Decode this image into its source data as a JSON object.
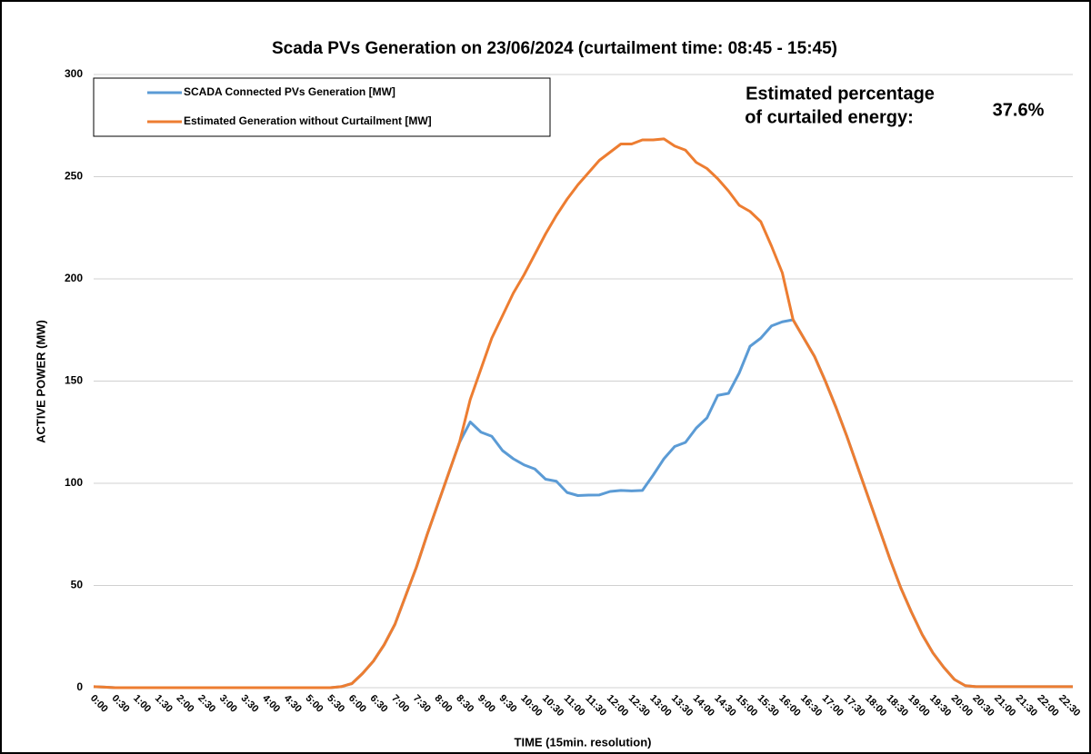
{
  "chart_data": {
    "type": "line",
    "title": "Scada PVs Generation on 23/06/2024 (curtailment time: 08:45 - 15:45)",
    "x_label": "TIME (15min. resolution)",
    "y_label": "ACTIVE POWER (MW)",
    "annotation_label": [
      "Estimated percentage",
      "of curtailed energy:"
    ],
    "annotation_value": "37.6%",
    "categories": [
      "0:00",
      null,
      "0:30",
      null,
      "1:00",
      null,
      "1:30",
      null,
      "2:00",
      null,
      "2:30",
      null,
      "3:00",
      null,
      "3:30",
      null,
      "4:00",
      null,
      "4:30",
      null,
      "5:00",
      null,
      "5:30",
      null,
      "6:00",
      null,
      "6:30",
      null,
      "7:00",
      null,
      "7:30",
      null,
      "8:00",
      null,
      "8:30",
      null,
      "9:00",
      null,
      "9:30",
      null,
      "10:00",
      null,
      "10:30",
      null,
      "11:00",
      null,
      "11:30",
      null,
      "12:00",
      null,
      "12:30",
      null,
      "13:00",
      null,
      "13:30",
      null,
      "14:00",
      null,
      "14:30",
      null,
      "15:00",
      null,
      "15:30",
      null,
      "16:00",
      null,
      "16:30",
      null,
      "17:00",
      null,
      "17:30",
      null,
      "18:00",
      null,
      "18:30",
      null,
      "19:00",
      null,
      "19:30",
      null,
      "20:00",
      null,
      "20:30",
      null,
      "21:00",
      null,
      "21:30",
      null,
      "22:00",
      null,
      "22:30",
      null
    ],
    "series": [
      {
        "name": "SCADA Connected PVs Generation [MW]",
        "color": "#5b9bd5",
        "values": [
          0.5,
          0.3,
          0,
          0,
          0,
          0,
          0,
          0,
          0,
          0,
          0,
          0,
          0,
          0,
          0,
          0,
          0,
          0,
          0,
          0,
          0,
          0,
          0,
          0.5,
          2,
          7,
          13,
          21,
          31,
          45,
          59,
          75,
          90,
          105,
          120,
          130,
          125,
          123,
          116,
          112,
          109,
          107,
          102,
          101,
          95.5,
          94,
          94.2,
          94.3,
          96,
          96.5,
          96.3,
          96.5,
          104,
          112,
          118,
          120,
          127,
          132,
          143,
          144,
          154,
          167,
          171,
          177,
          179,
          180,
          171,
          162,
          150,
          137,
          123,
          108,
          93,
          78,
          63,
          49,
          37,
          26,
          17,
          10,
          4,
          1,
          0.5,
          0.5,
          0.5,
          0.5,
          0.5,
          0.5,
          0.5,
          0.5,
          0.5,
          0.5
        ]
      },
      {
        "name": "Estimated Generation without Curtailment [MW]",
        "color": "#ed7d31",
        "values": [
          0.5,
          0.3,
          0,
          0,
          0,
          0,
          0,
          0,
          0,
          0,
          0,
          0,
          0,
          0,
          0,
          0,
          0,
          0,
          0,
          0,
          0,
          0,
          0,
          0.5,
          2,
          7,
          13,
          21,
          31,
          45,
          59,
          75,
          90,
          105,
          120,
          141,
          156,
          171,
          182,
          193,
          202,
          212,
          222,
          231,
          239,
          246,
          252,
          258,
          262,
          266,
          266,
          268,
          268,
          268.5,
          265,
          263,
          257,
          254,
          249,
          243,
          236,
          233,
          228,
          216,
          203,
          180,
          171,
          162,
          150,
          137,
          123,
          108,
          93,
          78,
          63,
          49,
          37,
          26,
          17,
          10,
          4,
          1,
          0.5,
          0.5,
          0.5,
          0.5,
          0.5,
          0.5,
          0.5,
          0.5,
          0.5,
          0.5
        ]
      }
    ],
    "ylim": [
      0,
      300
    ],
    "yticks": [
      0,
      50,
      100,
      150,
      200,
      250,
      300
    ],
    "grid": true,
    "legend": "top-left"
  }
}
